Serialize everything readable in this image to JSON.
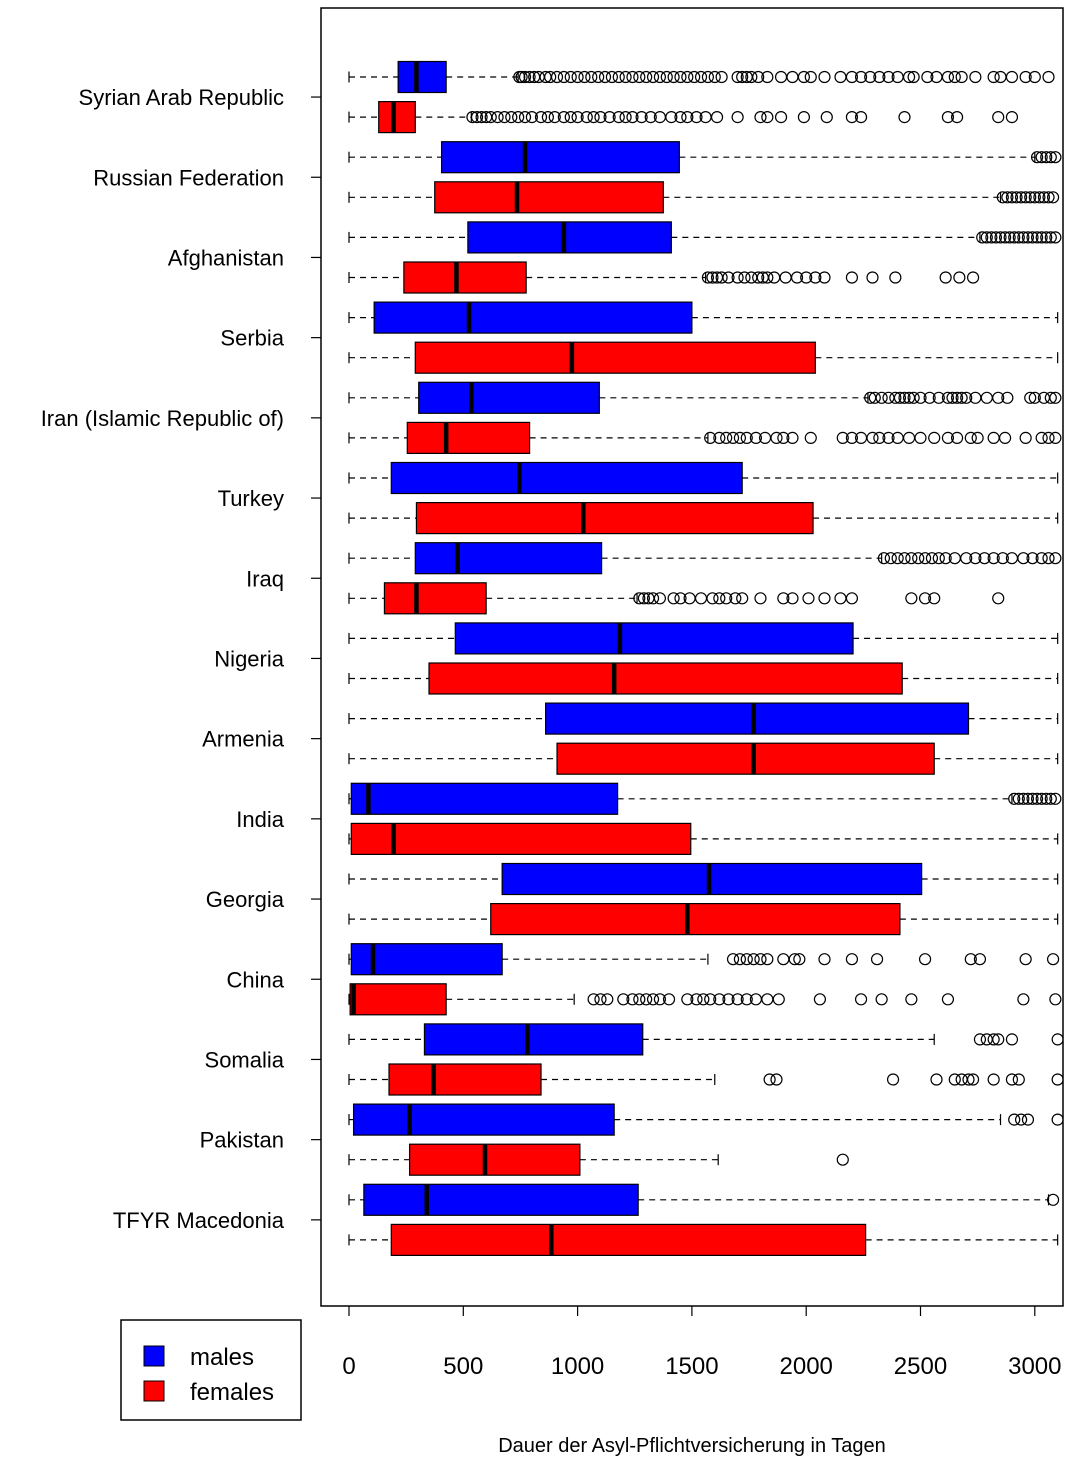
{
  "chart_data": {
    "type": "boxplot",
    "orientation": "horizontal",
    "title": "",
    "xlabel": "Dauer der Asyl-Pflichtversicherung in Tagen",
    "ylabel": "",
    "xlim": [
      0,
      3100
    ],
    "x_ticks": [
      0,
      500,
      1000,
      1500,
      2000,
      2500,
      3000
    ],
    "grid": false,
    "legend_position": "bottom-left",
    "colors": {
      "males": "#0000ff",
      "females": "#ff0000"
    },
    "series": [
      {
        "name": "males"
      },
      {
        "name": "females"
      }
    ],
    "categories": [
      "Syrian Arab Republic",
      "Russian Federation",
      "Afghanistan",
      "Serbia",
      "Iran (Islamic Republic of)",
      "Turkey",
      "Iraq",
      "Nigeria",
      "Armenia",
      "India",
      "Georgia",
      "China",
      "Somalia",
      "Pakistan",
      "TFYR Macedonia"
    ],
    "boxes": [
      {
        "country": "Syrian Arab Republic",
        "sex": "males",
        "min": 0,
        "q1": 215,
        "median": 295,
        "q3": 425,
        "whisker_high": 740,
        "outliers": [
          745,
          755,
          770,
          790,
          810,
          830,
          860,
          880,
          910,
          940,
          970,
          1000,
          1030,
          1060,
          1090,
          1120,
          1150,
          1180,
          1210,
          1240,
          1270,
          1300,
          1330,
          1360,
          1390,
          1420,
          1450,
          1480,
          1510,
          1540,
          1570,
          1600,
          1630,
          1700,
          1720,
          1740,
          1760,
          1790,
          1830,
          1890,
          1940,
          1990,
          2020,
          2080,
          2150,
          2200,
          2240,
          2280,
          2320,
          2360,
          2400,
          2450,
          2470,
          2530,
          2570,
          2620,
          2650,
          2680,
          2740,
          2820,
          2850,
          2900,
          2960,
          3000,
          3060
        ]
      },
      {
        "country": "Syrian Arab Republic",
        "sex": "females",
        "min": 0,
        "q1": 130,
        "median": 195,
        "q3": 290,
        "whisker_high": 535,
        "outliers": [
          540,
          560,
          580,
          600,
          620,
          650,
          680,
          710,
          740,
          770,
          800,
          840,
          870,
          900,
          940,
          970,
          1000,
          1040,
          1070,
          1100,
          1140,
          1180,
          1210,
          1240,
          1280,
          1320,
          1360,
          1410,
          1450,
          1480,
          1520,
          1560,
          1610,
          1700,
          1800,
          1830,
          1890,
          1990,
          2090,
          2200,
          2240,
          2430,
          2620,
          2660,
          2840,
          2900
        ]
      },
      {
        "country": "Russian Federation",
        "sex": "males",
        "min": 0,
        "q1": 405,
        "median": 770,
        "q3": 1445,
        "whisker_high": 3000,
        "outliers": [
          3010,
          3030,
          3050,
          3070,
          3090
        ]
      },
      {
        "country": "Russian Federation",
        "sex": "females",
        "min": 0,
        "q1": 375,
        "median": 735,
        "q3": 1375,
        "whisker_high": 2850,
        "outliers": [
          2860,
          2880,
          2900,
          2920,
          2940,
          2960,
          2980,
          3000,
          3020,
          3040,
          3060,
          3080
        ]
      },
      {
        "country": "Afghanistan",
        "sex": "males",
        "min": 0,
        "q1": 520,
        "median": 940,
        "q3": 1410,
        "whisker_high": 2760,
        "outliers": [
          2770,
          2790,
          2810,
          2830,
          2850,
          2870,
          2890,
          2910,
          2930,
          2950,
          2970,
          2990,
          3010,
          3030,
          3050,
          3070,
          3090
        ]
      },
      {
        "country": "Afghanistan",
        "sex": "females",
        "min": 0,
        "q1": 240,
        "median": 470,
        "q3": 775,
        "whisker_high": 1560,
        "outliers": [
          1570,
          1590,
          1610,
          1630,
          1660,
          1700,
          1730,
          1760,
          1790,
          1810,
          1830,
          1860,
          1910,
          1960,
          2000,
          2040,
          2080,
          2200,
          2290,
          2390,
          2610,
          2670,
          2730
        ]
      },
      {
        "country": "Serbia",
        "sex": "males",
        "min": 0,
        "q1": 110,
        "median": 525,
        "q3": 1500,
        "whisker_high": 3100,
        "outliers": []
      },
      {
        "country": "Serbia",
        "sex": "females",
        "min": 0,
        "q1": 290,
        "median": 975,
        "q3": 2040,
        "whisker_high": 3100,
        "outliers": []
      },
      {
        "country": "Iran (Islamic Republic of)",
        "sex": "males",
        "min": 0,
        "q1": 305,
        "median": 535,
        "q3": 1095,
        "whisker_high": 2270,
        "outliers": [
          2280,
          2300,
          2330,
          2360,
          2390,
          2410,
          2430,
          2450,
          2470,
          2500,
          2540,
          2580,
          2620,
          2640,
          2660,
          2680,
          2700,
          2740,
          2790,
          2840,
          2880,
          2980,
          3000,
          3040,
          3070,
          3090
        ]
      },
      {
        "country": "Iran (Islamic Republic of)",
        "sex": "females",
        "min": 0,
        "q1": 255,
        "median": 425,
        "q3": 790,
        "whisker_high": 1570,
        "outliers": [
          1580,
          1620,
          1650,
          1680,
          1710,
          1740,
          1780,
          1820,
          1870,
          1900,
          1940,
          2020,
          2160,
          2200,
          2240,
          2290,
          2320,
          2360,
          2400,
          2450,
          2500,
          2560,
          2620,
          2660,
          2720,
          2750,
          2820,
          2870,
          2960,
          3030,
          3060,
          3090
        ]
      },
      {
        "country": "Turkey",
        "sex": "males",
        "min": 0,
        "q1": 185,
        "median": 745,
        "q3": 1720,
        "whisker_high": 3100,
        "outliers": []
      },
      {
        "country": "Turkey",
        "sex": "females",
        "min": 0,
        "q1": 295,
        "median": 1025,
        "q3": 2030,
        "whisker_high": 3100,
        "outliers": []
      },
      {
        "country": "Iraq",
        "sex": "males",
        "min": 0,
        "q1": 290,
        "median": 475,
        "q3": 1105,
        "whisker_high": 2330,
        "outliers": [
          2340,
          2370,
          2400,
          2430,
          2460,
          2490,
          2520,
          2550,
          2580,
          2610,
          2650,
          2700,
          2740,
          2780,
          2820,
          2860,
          2900,
          2950,
          2990,
          3030,
          3060,
          3090
        ]
      },
      {
        "country": "Iraq",
        "sex": "females",
        "min": 0,
        "q1": 155,
        "median": 295,
        "q3": 600,
        "whisker_high": 1260,
        "outliers": [
          1270,
          1290,
          1310,
          1330,
          1360,
          1420,
          1450,
          1490,
          1540,
          1590,
          1620,
          1650,
          1690,
          1720,
          1800,
          1900,
          1940,
          2010,
          2080,
          2150,
          2200,
          2460,
          2520,
          2560,
          2840
        ]
      },
      {
        "country": "Nigeria",
        "sex": "males",
        "min": 0,
        "q1": 465,
        "median": 1185,
        "q3": 2205,
        "whisker_high": 3100,
        "outliers": []
      },
      {
        "country": "Nigeria",
        "sex": "females",
        "min": 0,
        "q1": 350,
        "median": 1160,
        "q3": 2420,
        "whisker_high": 3100,
        "outliers": []
      },
      {
        "country": "Armenia",
        "sex": "males",
        "min": 0,
        "q1": 860,
        "median": 1770,
        "q3": 2710,
        "whisker_high": 3100,
        "outliers": []
      },
      {
        "country": "Armenia",
        "sex": "females",
        "min": 0,
        "q1": 910,
        "median": 1770,
        "q3": 2560,
        "whisker_high": 3100,
        "outliers": []
      },
      {
        "country": "India",
        "sex": "males",
        "min": 0,
        "q1": 10,
        "median": 85,
        "q3": 1175,
        "whisker_high": 2900,
        "outliers": [
          2910,
          2930,
          2950,
          2970,
          2990,
          3010,
          3030,
          3050,
          3070,
          3090
        ]
      },
      {
        "country": "India",
        "sex": "females",
        "min": 0,
        "q1": 10,
        "median": 195,
        "q3": 1495,
        "whisker_high": 3100,
        "outliers": []
      },
      {
        "country": "Georgia",
        "sex": "males",
        "min": 0,
        "q1": 670,
        "median": 1575,
        "q3": 2505,
        "whisker_high": 3100,
        "outliers": []
      },
      {
        "country": "Georgia",
        "sex": "females",
        "min": 0,
        "q1": 620,
        "median": 1480,
        "q3": 2410,
        "whisker_high": 3100,
        "outliers": []
      },
      {
        "country": "China",
        "sex": "males",
        "min": 0,
        "q1": 10,
        "median": 105,
        "q3": 670,
        "whisker_high": 1570,
        "outliers": [
          1680,
          1710,
          1740,
          1770,
          1800,
          1830,
          1900,
          1950,
          1970,
          2080,
          2200,
          2310,
          2520,
          2720,
          2760,
          2960,
          3080
        ]
      },
      {
        "country": "China",
        "sex": "females",
        "min": 0,
        "q1": 5,
        "median": 20,
        "q3": 425,
        "whisker_high": 985,
        "outliers": [
          1070,
          1100,
          1130,
          1200,
          1240,
          1270,
          1300,
          1330,
          1360,
          1400,
          1480,
          1520,
          1550,
          1580,
          1620,
          1660,
          1700,
          1740,
          1780,
          1830,
          1880,
          2060,
          2240,
          2330,
          2460,
          2620,
          2950,
          3090
        ]
      },
      {
        "country": "Somalia",
        "sex": "males",
        "min": 0,
        "q1": 330,
        "median": 780,
        "q3": 1285,
        "whisker_high": 2560,
        "outliers": [
          2760,
          2790,
          2820,
          2840,
          2900,
          3100
        ]
      },
      {
        "country": "Somalia",
        "sex": "females",
        "min": 0,
        "q1": 175,
        "median": 370,
        "q3": 840,
        "whisker_high": 1600,
        "outliers": [
          1840,
          1870,
          2380,
          2570,
          2650,
          2680,
          2710,
          2730,
          2820,
          2900,
          2930,
          3100
        ]
      },
      {
        "country": "Pakistan",
        "sex": "males",
        "min": 0,
        "q1": 20,
        "median": 265,
        "q3": 1160,
        "whisker_high": 2850,
        "outliers": [
          2910,
          2940,
          2970,
          3100
        ]
      },
      {
        "country": "Pakistan",
        "sex": "females",
        "min": 0,
        "q1": 265,
        "median": 595,
        "q3": 1010,
        "whisker_high": 1615,
        "outliers": [
          2160
        ]
      },
      {
        "country": "TFYR Macedonia",
        "sex": "males",
        "min": 0,
        "q1": 65,
        "median": 340,
        "q3": 1265,
        "whisker_high": 3060,
        "outliers": [
          3080
        ]
      },
      {
        "country": "TFYR Macedonia",
        "sex": "females",
        "min": 0,
        "q1": 185,
        "median": 885,
        "q3": 2260,
        "whisker_high": 3100,
        "outliers": []
      }
    ]
  }
}
